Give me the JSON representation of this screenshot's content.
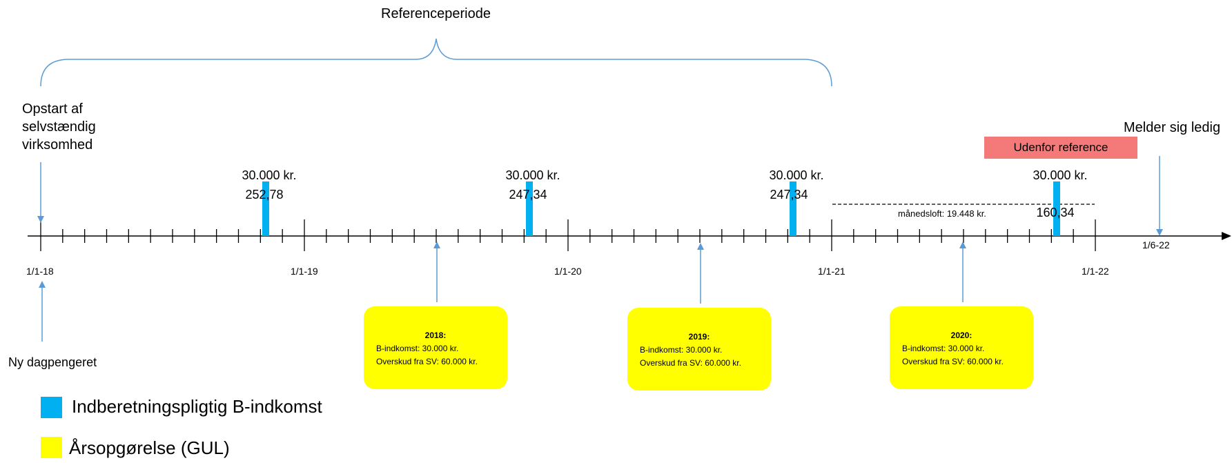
{
  "reference_period": {
    "label": "Referenceperiode"
  },
  "start_label": "Opstart af\nselvstændig\nvirksomhed",
  "end_label": "Melder sig ledig",
  "new_label": "Ny dagpengeret",
  "outside_label": "Udenfor reference",
  "monthly_cap_label": "månedsloft: 19.448 kr.",
  "ticks": [
    {
      "label": "1/1-18"
    },
    {
      "label": "1/1-19"
    },
    {
      "label": "1/1-20"
    },
    {
      "label": "1/1-21"
    },
    {
      "label": "1/1-22"
    },
    {
      "label": "1/6-22"
    }
  ],
  "income_bars": [
    {
      "amount": "30.000 kr.",
      "sub": "252,78"
    },
    {
      "amount": "30.000 kr.",
      "sub": "247,34"
    },
    {
      "amount": "30.000 kr.",
      "sub": "247,34"
    },
    {
      "amount": "30.000 kr.",
      "sub": "160,34"
    }
  ],
  "year_statements": [
    {
      "year": "2018:",
      "line1": "B-indkomst: 30.000 kr.",
      "line2": "Overskud fra SV: 60.000 kr."
    },
    {
      "year": "2019:",
      "line1": "B-indkomst: 30.000 kr.",
      "line2": "Overskud fra SV: 60.000 kr."
    },
    {
      "year": "2020:",
      "line1": "B-indkomst: 30.000 kr.",
      "line2": "Overskud fra SV: 60.000 kr."
    }
  ],
  "legend": [
    {
      "label": "Indberetningspligtig B-indkomst",
      "color": "#00b0f0"
    },
    {
      "label": "Årsopgørelse (GUL)",
      "color": "#ffff00"
    }
  ],
  "colors": {
    "bar": "#00b0f0",
    "arrow": "#5b9bd5",
    "brace": "#5b9bd5",
    "yellow": "#ffff00",
    "red": "#f47a7a"
  }
}
